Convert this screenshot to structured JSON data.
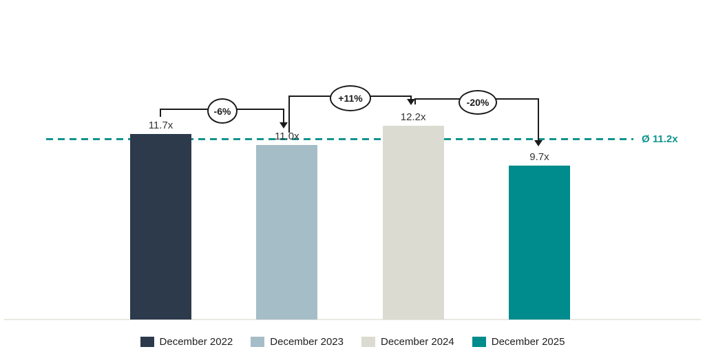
{
  "chart_data": {
    "type": "bar",
    "title": "",
    "unit": "x",
    "categories": [
      "December 2022",
      "December 2023",
      "December 2024",
      "December 2025"
    ],
    "values": [
      11.7,
      11.0,
      12.2,
      9.7
    ],
    "value_labels": [
      "11.7x",
      "11.0x",
      "12.2x",
      "9.7x"
    ],
    "average": {
      "value": 11.2,
      "label": "Ø 11.2x"
    },
    "annotations": [
      {
        "label": "-6%",
        "from": "December 2022",
        "to": "December 2023"
      },
      {
        "label": "+11%",
        "from": "December 2023",
        "to": "December 2024"
      },
      {
        "label": "-20%",
        "from": "December 2024",
        "to": "December 2025"
      }
    ],
    "colors": {
      "series": [
        "#2d3a4c",
        "#a5bdc6",
        "#dbdbd1",
        "#008b8c"
      ],
      "average_line": "#11948f",
      "connector": "#1a1a1a",
      "axis_line": "#e9e9e2",
      "label_text": "#333333"
    },
    "legend_position": "bottom",
    "grid": false,
    "axes_visible": false
  }
}
